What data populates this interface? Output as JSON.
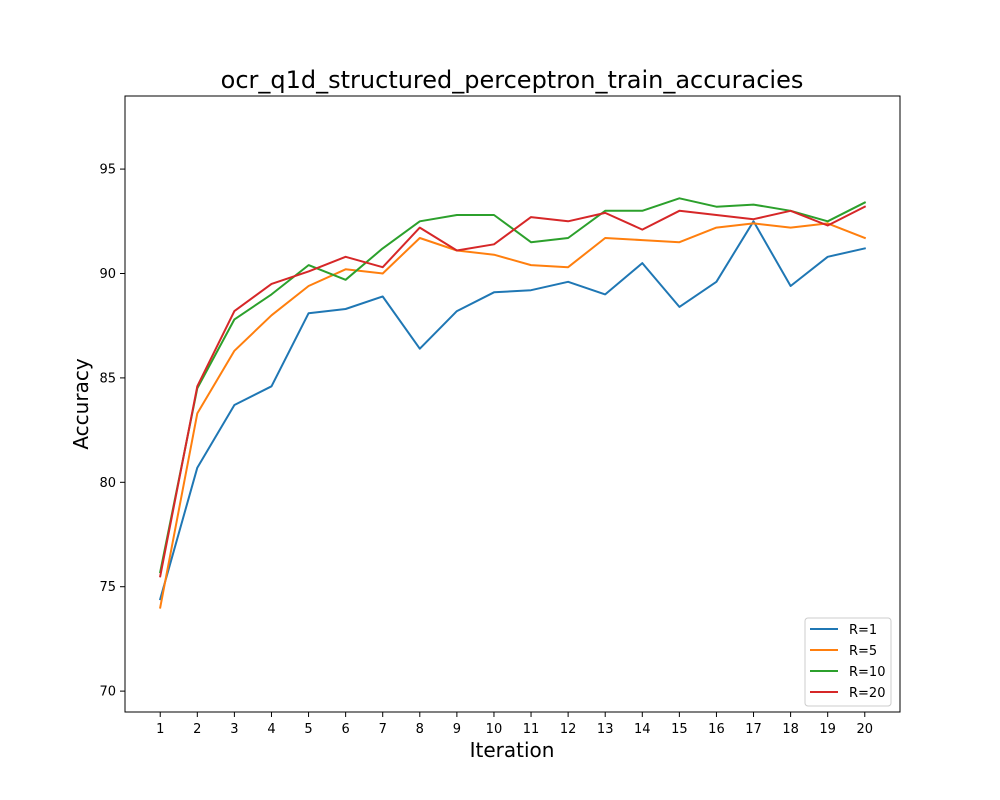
{
  "chart_data": {
    "type": "line",
    "title": "ocr_q1d_structured_perceptron_train_accuracies",
    "xlabel": "Iteration",
    "ylabel": "Accuracy",
    "x": [
      1,
      2,
      3,
      4,
      5,
      6,
      7,
      8,
      9,
      10,
      11,
      12,
      13,
      14,
      15,
      16,
      17,
      18,
      19,
      20
    ],
    "xlim": [
      0.05,
      20.95
    ],
    "ylim": [
      69.0,
      98.5
    ],
    "yticks": [
      70,
      75,
      80,
      85,
      90,
      95
    ],
    "grid": false,
    "legend_position": "lower-right",
    "series": [
      {
        "name": "R=1",
        "color": "#1f77b4",
        "values": [
          74.4,
          80.7,
          83.7,
          84.6,
          88.1,
          88.3,
          88.9,
          86.4,
          88.2,
          89.1,
          89.2,
          89.6,
          89.0,
          90.5,
          88.4,
          89.6,
          92.5,
          89.4,
          90.8,
          91.2
        ]
      },
      {
        "name": "R=5",
        "color": "#ff7f0e",
        "values": [
          74.0,
          83.3,
          86.3,
          88.0,
          89.4,
          90.2,
          90.0,
          91.7,
          91.1,
          90.9,
          90.4,
          90.3,
          91.7,
          91.6,
          91.5,
          92.2,
          92.4,
          92.2,
          92.4,
          91.7
        ]
      },
      {
        "name": "R=10",
        "color": "#2ca02c",
        "values": [
          75.7,
          84.5,
          87.8,
          89.0,
          90.4,
          89.7,
          91.2,
          92.5,
          92.8,
          92.8,
          91.5,
          91.7,
          93.0,
          93.0,
          93.6,
          93.2,
          93.3,
          93.0,
          92.5,
          93.4
        ]
      },
      {
        "name": "R=20",
        "color": "#d62728",
        "values": [
          75.5,
          84.6,
          88.2,
          89.5,
          90.1,
          90.8,
          90.3,
          92.2,
          91.1,
          91.4,
          92.7,
          92.5,
          92.9,
          92.1,
          93.0,
          92.8,
          92.6,
          93.0,
          92.3,
          93.2
        ]
      }
    ]
  }
}
